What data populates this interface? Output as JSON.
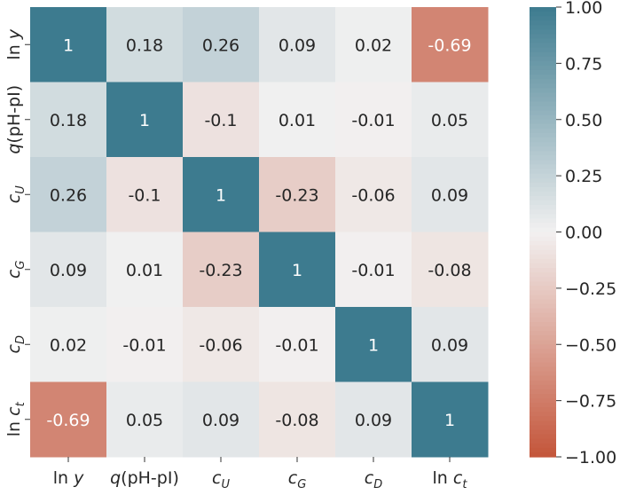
{
  "chart_data": {
    "type": "heatmap",
    "labels": [
      "ln y",
      "q(pH-pI)",
      "c_U",
      "c_G",
      "c_D",
      "ln c_t"
    ],
    "labels_display": [
      {
        "main": "ln ",
        "ital": "y",
        "sub": ""
      },
      {
        "main": "",
        "ital": "q",
        "rest": "(pH-pI)",
        "sub": ""
      },
      {
        "main": "",
        "ital": "c",
        "sub": "U"
      },
      {
        "main": "",
        "ital": "c",
        "sub": "G"
      },
      {
        "main": "",
        "ital": "c",
        "sub": "D"
      },
      {
        "main": "ln ",
        "ital": "c",
        "sub": "t"
      }
    ],
    "matrix": [
      [
        1,
        0.18,
        0.26,
        0.09,
        0.02,
        -0.69
      ],
      [
        0.18,
        1,
        -0.1,
        0.01,
        -0.01,
        0.05
      ],
      [
        0.26,
        -0.1,
        1,
        -0.23,
        -0.06,
        0.09
      ],
      [
        0.09,
        0.01,
        -0.23,
        1,
        -0.01,
        -0.08
      ],
      [
        0.02,
        -0.01,
        -0.06,
        -0.01,
        1,
        0.09
      ],
      [
        -0.69,
        0.05,
        0.09,
        -0.08,
        0.09,
        1
      ]
    ],
    "colorbar": {
      "range": [
        -1,
        1
      ],
      "ticks": [
        "1.00",
        "0.75",
        "0.50",
        "0.25",
        "0.00",
        "−0.25",
        "−0.50",
        "−0.75",
        "−1.00"
      ],
      "tick_values": [
        1,
        0.75,
        0.5,
        0.25,
        0,
        -0.25,
        -0.5,
        -0.75,
        -1
      ]
    },
    "colors": {
      "negative": "#c4553a",
      "center": "#f2f1f1",
      "positive": "#3d7b8f"
    }
  }
}
